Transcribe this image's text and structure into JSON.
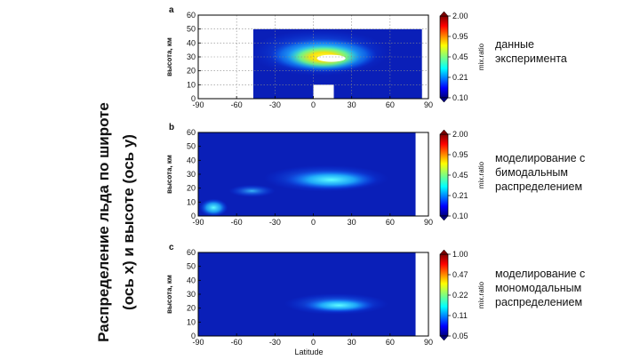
{
  "slide_title_lines": [
    "Распределение льда по широте",
    "(ось x) и высоте (ось y)"
  ],
  "chart_data": [
    {
      "type": "heatmap",
      "panel_label": "a",
      "ylabel": "высота, км",
      "xlabel": "",
      "xlim": [
        -90,
        90
      ],
      "ylim": [
        0,
        60
      ],
      "x_ticks": [
        -90,
        -60,
        -30,
        0,
        30,
        60,
        90
      ],
      "y_ticks": [
        0,
        10,
        20,
        30,
        40,
        50,
        60
      ],
      "grid": true,
      "colorbar_label": "mix.ratio",
      "colorbar_ticks": [
        "2.00",
        "0.95",
        "0.45",
        "0.21",
        "0.10"
      ],
      "description_lines": [
        "данные",
        "эксперимента"
      ]
    },
    {
      "type": "heatmap",
      "panel_label": "b",
      "ylabel": "высота, км",
      "xlabel": "",
      "xlim": [
        -90,
        90
      ],
      "ylim": [
        0,
        60
      ],
      "x_ticks": [
        -90,
        -60,
        -30,
        0,
        30,
        60,
        90
      ],
      "y_ticks": [
        0,
        10,
        20,
        30,
        40,
        50,
        60
      ],
      "grid": false,
      "colorbar_label": "mix.ratio",
      "colorbar_ticks": [
        "2.00",
        "0.95",
        "0.45",
        "0.21",
        "0.10"
      ],
      "description_lines": [
        "моделирование с",
        "бимодальным",
        "распределением"
      ]
    },
    {
      "type": "heatmap",
      "panel_label": "c",
      "ylabel": "высота, км",
      "xlabel": "Latitude",
      "xlim": [
        -90,
        90
      ],
      "ylim": [
        0,
        60
      ],
      "x_ticks": [
        -90,
        -60,
        -30,
        0,
        30,
        60,
        90
      ],
      "y_ticks": [
        0,
        10,
        20,
        30,
        40,
        50,
        60
      ],
      "grid": false,
      "colorbar_label": "mix.ratio",
      "colorbar_ticks": [
        "1.00",
        "0.47",
        "0.22",
        "0.11",
        "0.05"
      ],
      "description_lines": [
        "моделирование с",
        "мономодальным",
        "распределением"
      ]
    }
  ]
}
